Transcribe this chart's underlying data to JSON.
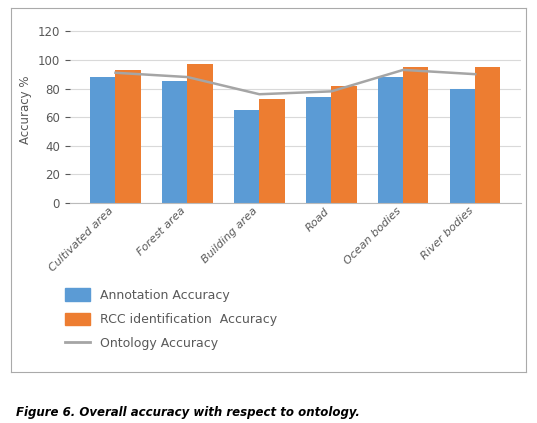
{
  "categories": [
    "Cultivated area",
    "Forest area",
    "Building area",
    "Road",
    "Ocean bodies",
    "River bodies"
  ],
  "annotation_accuracy": [
    88,
    85,
    65,
    74,
    88,
    80
  ],
  "rcc_accuracy": [
    93,
    97,
    73,
    82,
    95,
    95
  ],
  "ontology_accuracy": [
    91,
    88,
    76,
    78,
    93,
    90
  ],
  "bar_color_annotation": "#5B9BD5",
  "bar_color_rcc": "#ED7D31",
  "line_color_ontology": "#A5A5A5",
  "ylabel": "Accuracy %",
  "ylim": [
    0,
    130
  ],
  "yticks": [
    0,
    20,
    40,
    60,
    80,
    100,
    120
  ],
  "legend_annotation": "Annotation Accuracy",
  "legend_rcc": "RCC identification  Accuracy",
  "legend_ontology": "Ontology Accuracy",
  "figure_caption": "Figure 6. Overall accuracy with respect to ontology.",
  "bar_width": 0.35,
  "background_color": "#FFFFFF",
  "grid_color": "#D9D9D9",
  "border_color": "#AAAAAA",
  "legend_text_color": "#595959",
  "axis_text_color": "#595959"
}
